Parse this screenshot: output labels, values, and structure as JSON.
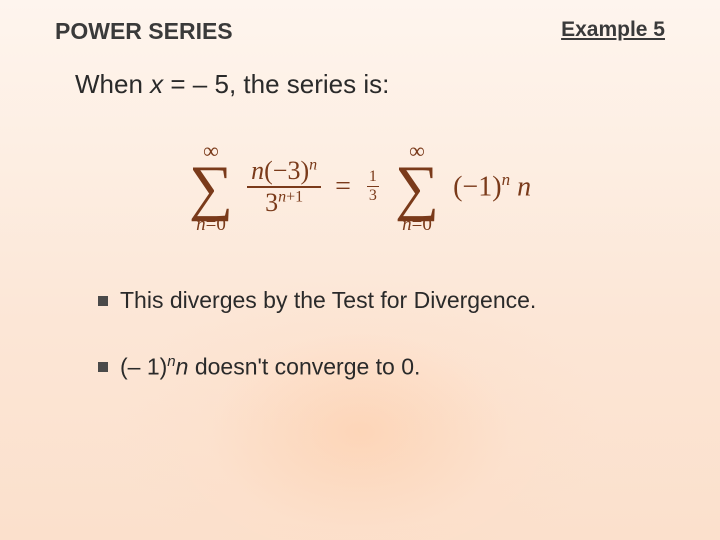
{
  "slide": {
    "title": "POWER SERIES",
    "example_label": "Example 5",
    "intro_prefix": "When ",
    "intro_var": "x",
    "intro_eq": " = ",
    "intro_val": "– 5",
    "intro_suffix": ", the series is:",
    "equation": {
      "sum_top": "∞",
      "sum_bottom_var": "n",
      "sum_bottom_eq": "=0",
      "lhs_num_var": "n",
      "lhs_num_base": "(−3)",
      "lhs_num_exp": "n",
      "lhs_den_base": "3",
      "lhs_den_exp": "n",
      "lhs_den_exp2": "+1",
      "equals": "=",
      "coef_num": "1",
      "coef_den": "3",
      "rhs_base": "(−1)",
      "rhs_exp": "n",
      "rhs_var": " n"
    },
    "bullets": [
      {
        "text": "This diverges by the Test for Divergence."
      },
      {
        "prefix": "(– 1)",
        "sup": "n",
        "var": "n",
        "suffix": " doesn't converge to 0."
      }
    ]
  },
  "colors": {
    "text": "#2a2a2a",
    "heading": "#3a3a3a",
    "math": "#7a3a1a",
    "bg_top": "#fef5ee",
    "bg_bottom": "#fbe0cc"
  }
}
